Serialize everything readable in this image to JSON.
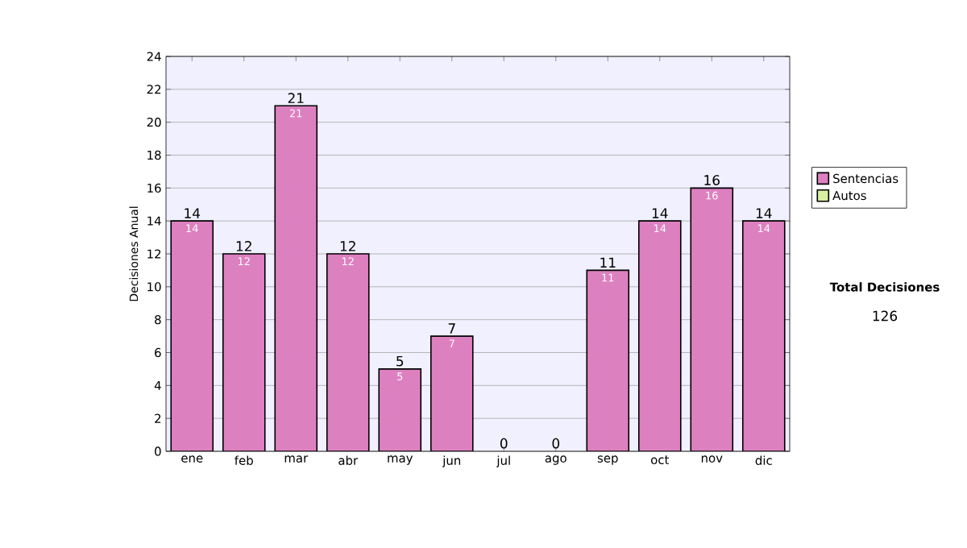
{
  "chart_data": {
    "type": "bar",
    "stacked": true,
    "ylabel": "Decisiones Anual",
    "categories": [
      "ene",
      "feb",
      "mar",
      "abr",
      "may",
      "jun",
      "jul",
      "ago",
      "sep",
      "oct",
      "nov",
      "dic"
    ],
    "series": [
      {
        "name": "Sentencias",
        "color": "#dd80c0",
        "values": [
          14,
          12,
          21,
          12,
          5,
          7,
          0,
          0,
          11,
          14,
          16,
          14
        ],
        "value_labels": [
          "14",
          "12",
          "21",
          "12",
          "5",
          "7",
          null,
          null,
          "11",
          "14",
          "16",
          "14"
        ]
      },
      {
        "name": "Autos",
        "color": "#d9f0a3",
        "values": [
          0,
          0,
          0,
          0,
          0,
          0,
          0,
          0,
          0,
          0,
          0,
          0
        ]
      }
    ],
    "totals": [
      "14",
      "12",
      "21",
      "12",
      "5",
      "7",
      "0",
      "0",
      "11",
      "14",
      "16",
      "14"
    ],
    "ylim": [
      0,
      24
    ],
    "yticks": [
      0,
      2,
      4,
      6,
      8,
      10,
      12,
      14,
      16,
      18,
      20,
      22,
      24
    ],
    "grid": "y",
    "legend": "right",
    "annotations": [
      "Total Decisiones",
      "126"
    ]
  }
}
